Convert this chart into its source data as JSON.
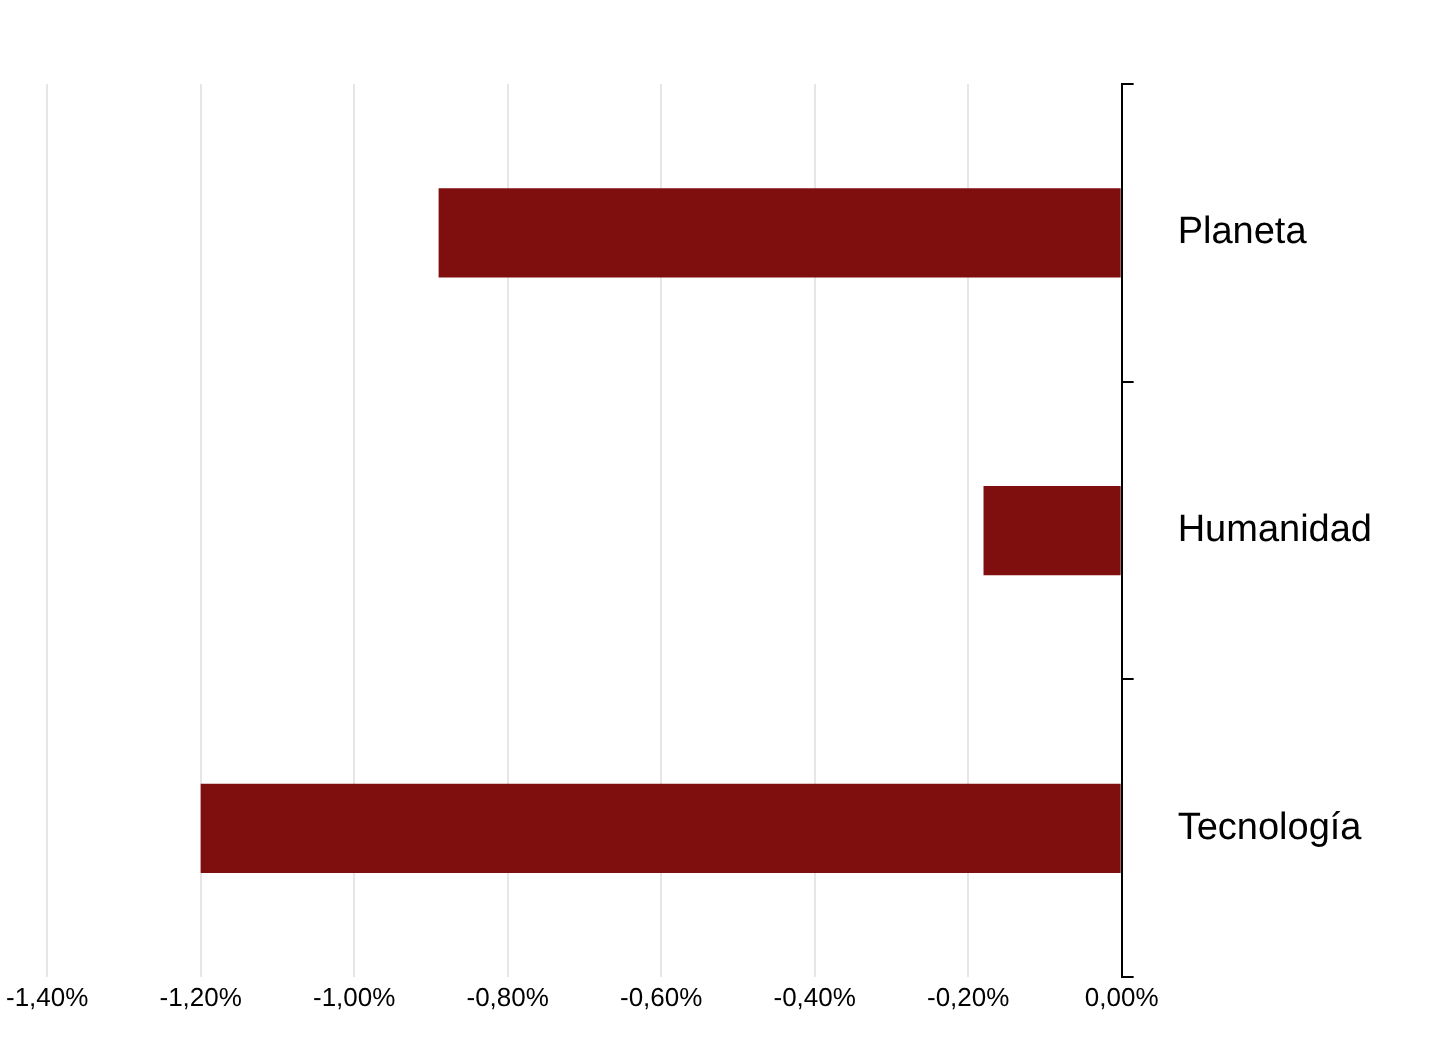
{
  "chart_data": {
    "type": "bar",
    "orientation": "horizontal",
    "categories": [
      "Planeta",
      "Humanidad",
      "Tecnología"
    ],
    "values": [
      -0.89,
      -0.18,
      -1.2
    ],
    "color": "#7f0f0f",
    "xlim": [
      -1.4,
      0
    ],
    "xticks": [
      {
        "value": -1.4,
        "label": "-1,40%"
      },
      {
        "value": -1.2,
        "label": "-1,20%"
      },
      {
        "value": -1.0,
        "label": "-1,00%"
      },
      {
        "value": -0.8,
        "label": "-0,80%"
      },
      {
        "value": -0.6,
        "label": "-0,60%"
      },
      {
        "value": -0.4,
        "label": "-0,40%"
      },
      {
        "value": -0.2,
        "label": "-0,20%"
      },
      {
        "value": 0,
        "label": "0,00%"
      }
    ],
    "grid": "x"
  }
}
